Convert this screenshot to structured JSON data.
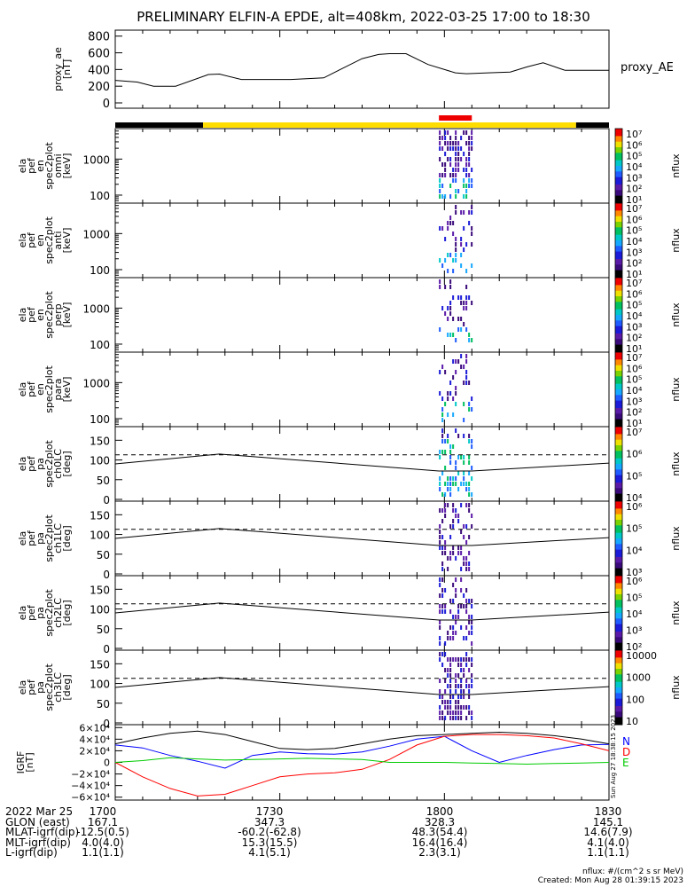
{
  "title": "PRELIMINARY ELFIN-A EPDE, alt=408km, 2022-03-25 17:00 to 18:30",
  "ae_panel": {
    "ylabel": [
      "proxy_ae",
      "[nT]"
    ],
    "legend": "proxy_AE",
    "ticks": [
      "800",
      "600",
      "400",
      "200",
      "0"
    ]
  },
  "energy_panels": [
    {
      "ylabel": [
        "ela",
        "pef",
        "en",
        "spec2plot",
        "omni",
        "[keV]"
      ],
      "ticks": [
        "1000",
        "100"
      ]
    },
    {
      "ylabel": [
        "ela",
        "pef",
        "en",
        "spec2plot",
        "anti",
        "[keV]"
      ],
      "ticks": [
        "1000",
        "100"
      ]
    },
    {
      "ylabel": [
        "ela",
        "pef",
        "en",
        "spec2plot",
        "perp",
        "[keV]"
      ],
      "ticks": [
        "1000",
        "100"
      ]
    },
    {
      "ylabel": [
        "ela",
        "pef",
        "en",
        "spec2plot",
        "para",
        "[keV]"
      ],
      "ticks": [
        "1000",
        "100"
      ]
    }
  ],
  "pa_panels": [
    {
      "ylabel": [
        "ela",
        "pef",
        "pa",
        "spec2plot",
        "ch0LC",
        "[deg]"
      ],
      "ticks": [
        "150",
        "100",
        "50",
        "0"
      ]
    },
    {
      "ylabel": [
        "ela",
        "pef",
        "pa",
        "spec2plot",
        "ch1LC",
        "[deg]"
      ],
      "ticks": [
        "150",
        "100",
        "50",
        "0"
      ]
    },
    {
      "ylabel": [
        "ela",
        "pef",
        "pa",
        "spec2plot",
        "ch2LC",
        "[deg]"
      ],
      "ticks": [
        "150",
        "100",
        "50",
        "0"
      ]
    },
    {
      "ylabel": [
        "ela",
        "pef",
        "pa",
        "spec2plot",
        "ch3LC",
        "[deg]"
      ],
      "ticks": [
        "150",
        "100",
        "50",
        "0"
      ]
    }
  ],
  "colorbars": [
    {
      "label": "nflux",
      "ticks": [
        "10⁷",
        "10⁶",
        "10⁵",
        "10⁴",
        "10³",
        "10²",
        "10¹"
      ]
    },
    {
      "label": "nflux",
      "ticks": [
        "10⁷",
        "10⁶",
        "10⁵",
        "10⁴",
        "10³",
        "10²",
        "10¹"
      ]
    },
    {
      "label": "nflux",
      "ticks": [
        "10⁷",
        "10⁶",
        "10⁵",
        "10⁴",
        "10³",
        "10²",
        "10¹"
      ]
    },
    {
      "label": "nflux",
      "ticks": [
        "10⁷",
        "10⁶",
        "10⁵",
        "10⁴",
        "10³",
        "10²",
        "10¹"
      ]
    },
    {
      "label": "nflux",
      "ticks": [
        "10⁷",
        "10⁶",
        "10⁵",
        "10⁴"
      ]
    },
    {
      "label": "nflux",
      "ticks": [
        "10⁶",
        "10⁵",
        "10⁴",
        "10³"
      ]
    },
    {
      "label": "nflux",
      "ticks": [
        "10⁶",
        "10⁵",
        "10⁴",
        "10³",
        "10²"
      ]
    },
    {
      "label": "nflux",
      "ticks": [
        "10000",
        "1000",
        "100",
        "10"
      ]
    }
  ],
  "igrf_panel": {
    "ylabel": [
      "IGRF",
      "[nT]"
    ],
    "ticks": [
      "6×10⁴",
      "4×10⁴",
      "2×10⁴",
      "0",
      "−2×10⁴",
      "−4×10⁴",
      "−6×10⁴"
    ],
    "legend": [
      {
        "label": "N",
        "color": "#0000ff"
      },
      {
        "label": "D",
        "color": "#ff0000"
      },
      {
        "label": "E",
        "color": "#00cc00"
      }
    ],
    "side_stamp": "Sun Aug 27 18:38:15 2023"
  },
  "orbit_table": [
    [
      "2022 Mar 25",
      "1700",
      "1730",
      "1800",
      "1830"
    ],
    [
      "GLON (east)",
      "167.1",
      "347.3",
      "328.3",
      "145.1"
    ],
    [
      "MLAT-igrf(dip)",
      "-12.5(0.5)",
      "-60.2(-62.8)",
      "48.3(54.4)",
      "14.6(7.9)"
    ],
    [
      "MLT-igrf(dip)",
      "4.0(4.0)",
      "15.3(15.5)",
      "16.4(16.4)",
      "4.1(4.0)"
    ],
    [
      "L-igrf(dip)",
      "1.1(1.1)",
      "4.1(5.1)",
      "2.3(3.1)",
      "1.1(1.1)"
    ]
  ],
  "footer": {
    "units": "nflux: #/(cm^2 s sr MeV)",
    "created": "Created: Mon Aug 28 01:39:15 2023"
  },
  "chart_data": {
    "type": "line",
    "time_range": [
      "17:00",
      "18:30"
    ],
    "x_ticks": [
      "1700",
      "1730",
      "1800",
      "1830"
    ],
    "proxy_ae": {
      "units": "nT",
      "ylim": [
        0,
        850
      ],
      "t_min": [
        0,
        4,
        7,
        11,
        17,
        19,
        23,
        28,
        32,
        38,
        41,
        45,
        48,
        50,
        53,
        57,
        62,
        64,
        68,
        72,
        75,
        78,
        82,
        90
      ],
      "values": [
        270,
        250,
        200,
        200,
        340,
        345,
        280,
        280,
        280,
        300,
        400,
        530,
        580,
        590,
        590,
        460,
        360,
        350,
        360,
        370,
        430,
        480,
        390,
        390
      ]
    },
    "mission_phase_bar": [
      {
        "from_min": 0,
        "to_min": 16,
        "color": "black"
      },
      {
        "from_min": 16,
        "to_min": 84,
        "color": "yellow"
      },
      {
        "from_min": 84,
        "to_min": 90,
        "color": "black"
      }
    ],
    "science_zone_bar": {
      "from_min": 59,
      "to_min": 65,
      "color": "red"
    },
    "energy_spectrograms": {
      "units": "keV",
      "ylim": [
        60,
        7000
      ],
      "scale": "log",
      "data_window_min": [
        59,
        65
      ]
    },
    "pitch_angle_spectrograms": {
      "units": "deg",
      "ylim": [
        0,
        180
      ],
      "loss_cone_dashed_deg": 113,
      "solid_line": {
        "t_min": [
          0,
          19,
          59,
          65,
          90
        ],
        "deg": [
          90,
          115,
          72,
          72,
          92
        ]
      },
      "data_window_min": [
        59,
        65
      ]
    },
    "igrf": {
      "units": "nT",
      "ylim": [
        -65000,
        65000
      ],
      "t_min": [
        0,
        5,
        10,
        15,
        20,
        25,
        30,
        35,
        40,
        45,
        50,
        55,
        60,
        65,
        70,
        75,
        80,
        85,
        90
      ],
      "series": [
        {
          "name": "N",
          "color": "#0000ff",
          "values": [
            30000,
            25000,
            12000,
            2000,
            -10000,
            12000,
            18000,
            15000,
            14000,
            18000,
            28000,
            40000,
            45000,
            20000,
            0,
            12000,
            22000,
            30000,
            31000
          ]
        },
        {
          "name": "D",
          "color": "#ff0000",
          "values": [
            0,
            -25000,
            -45000,
            -58000,
            -55000,
            -40000,
            -25000,
            -20000,
            -18000,
            -12000,
            5000,
            30000,
            45000,
            48000,
            48000,
            46000,
            42000,
            32000,
            20000
          ]
        },
        {
          "name": "E",
          "color": "#00cc00",
          "values": [
            0,
            3000,
            8000,
            6000,
            4000,
            5000,
            6000,
            7000,
            6000,
            5000,
            0,
            0,
            0,
            -1000,
            -2000,
            -3000,
            -2000,
            -1000,
            0
          ]
        },
        {
          "name": "total",
          "color": "#000000",
          "values": [
            32000,
            42000,
            50000,
            54000,
            48000,
            36000,
            24000,
            22000,
            24000,
            32000,
            40000,
            46000,
            48000,
            50000,
            52000,
            50000,
            46000,
            40000,
            32000
          ]
        }
      ]
    }
  }
}
